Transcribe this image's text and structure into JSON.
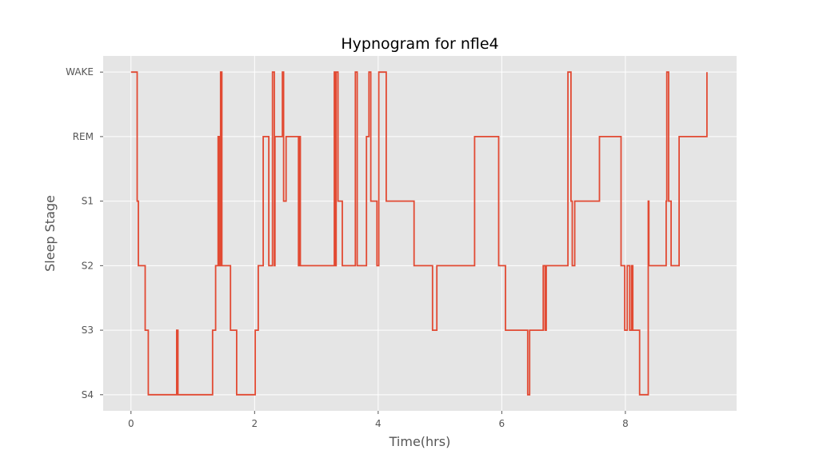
{
  "chart_data": {
    "type": "line",
    "title": "Hypnogram for nfle4",
    "xlabel": "Time(hrs)",
    "ylabel": "Sleep Stage",
    "xlim": [
      -0.45,
      9.8
    ],
    "ylim": [
      -0.25,
      5.25
    ],
    "xticks": [
      0,
      2,
      4,
      6,
      8
    ],
    "xtick_labels": [
      "0",
      "2",
      "4",
      "6",
      "8"
    ],
    "ytick_labels": [
      "S4",
      "S3",
      "S2",
      "S1",
      "REM",
      "WAKE"
    ],
    "grid": true,
    "colors": {
      "line": "#e24a33",
      "plot_bg": "#e5e5e5",
      "grid": "#ffffff"
    },
    "series": [
      {
        "stage_index": {
          "S4": 0,
          "S3": 1,
          "S2": 2,
          "S1": 3,
          "REM": 4,
          "WAKE": 5
        },
        "x": [
          0,
          0.1,
          0.12,
          0.23,
          0.28,
          0.74,
          0.76,
          0.77,
          1.32,
          1.37,
          1.41,
          1.43,
          1.45,
          1.47,
          1.49,
          1.51,
          1.61,
          1.71,
          2.01,
          2.06,
          2.14,
          2.23,
          2.29,
          2.32,
          2.33,
          2.35,
          2.45,
          2.47,
          2.49,
          2.51,
          2.55,
          2.71,
          2.72,
          2.74,
          2.75,
          3.0,
          3.29,
          3.3,
          3.32,
          3.35,
          3.42,
          3.47,
          3.63,
          3.66,
          3.81,
          3.85,
          3.88,
          3.98,
          4.01,
          4.13,
          4.58,
          4.88,
          4.95,
          5.56,
          5.95,
          6.06,
          6.42,
          6.45,
          6.67,
          6.7,
          6.72,
          7.04,
          7.07,
          7.12,
          7.14,
          7.18,
          7.58,
          7.93,
          7.99,
          8.03,
          8.07,
          8.1,
          8.12,
          8.23,
          8.37,
          8.38,
          8.42,
          8.66,
          8.67,
          8.7,
          8.74,
          8.86,
          8.87,
          9.32
        ],
        "y": [
          5,
          3,
          2,
          1,
          0,
          1,
          0,
          0,
          1,
          2,
          4,
          2,
          5,
          2,
          2,
          2,
          1,
          0,
          1,
          2,
          4,
          2,
          5,
          2,
          4,
          4,
          5,
          3,
          3,
          4,
          4,
          2,
          4,
          2,
          2,
          2,
          5,
          2,
          5,
          3,
          2,
          2,
          5,
          2,
          4,
          5,
          3,
          2,
          5,
          3,
          2,
          1,
          2,
          4,
          2,
          1,
          0,
          1,
          2,
          1,
          2,
          2,
          5,
          3,
          2,
          3,
          4,
          2,
          1,
          2,
          1,
          2,
          1,
          0,
          3,
          2,
          2,
          3,
          5,
          3,
          2,
          2,
          4,
          5
        ]
      }
    ]
  }
}
